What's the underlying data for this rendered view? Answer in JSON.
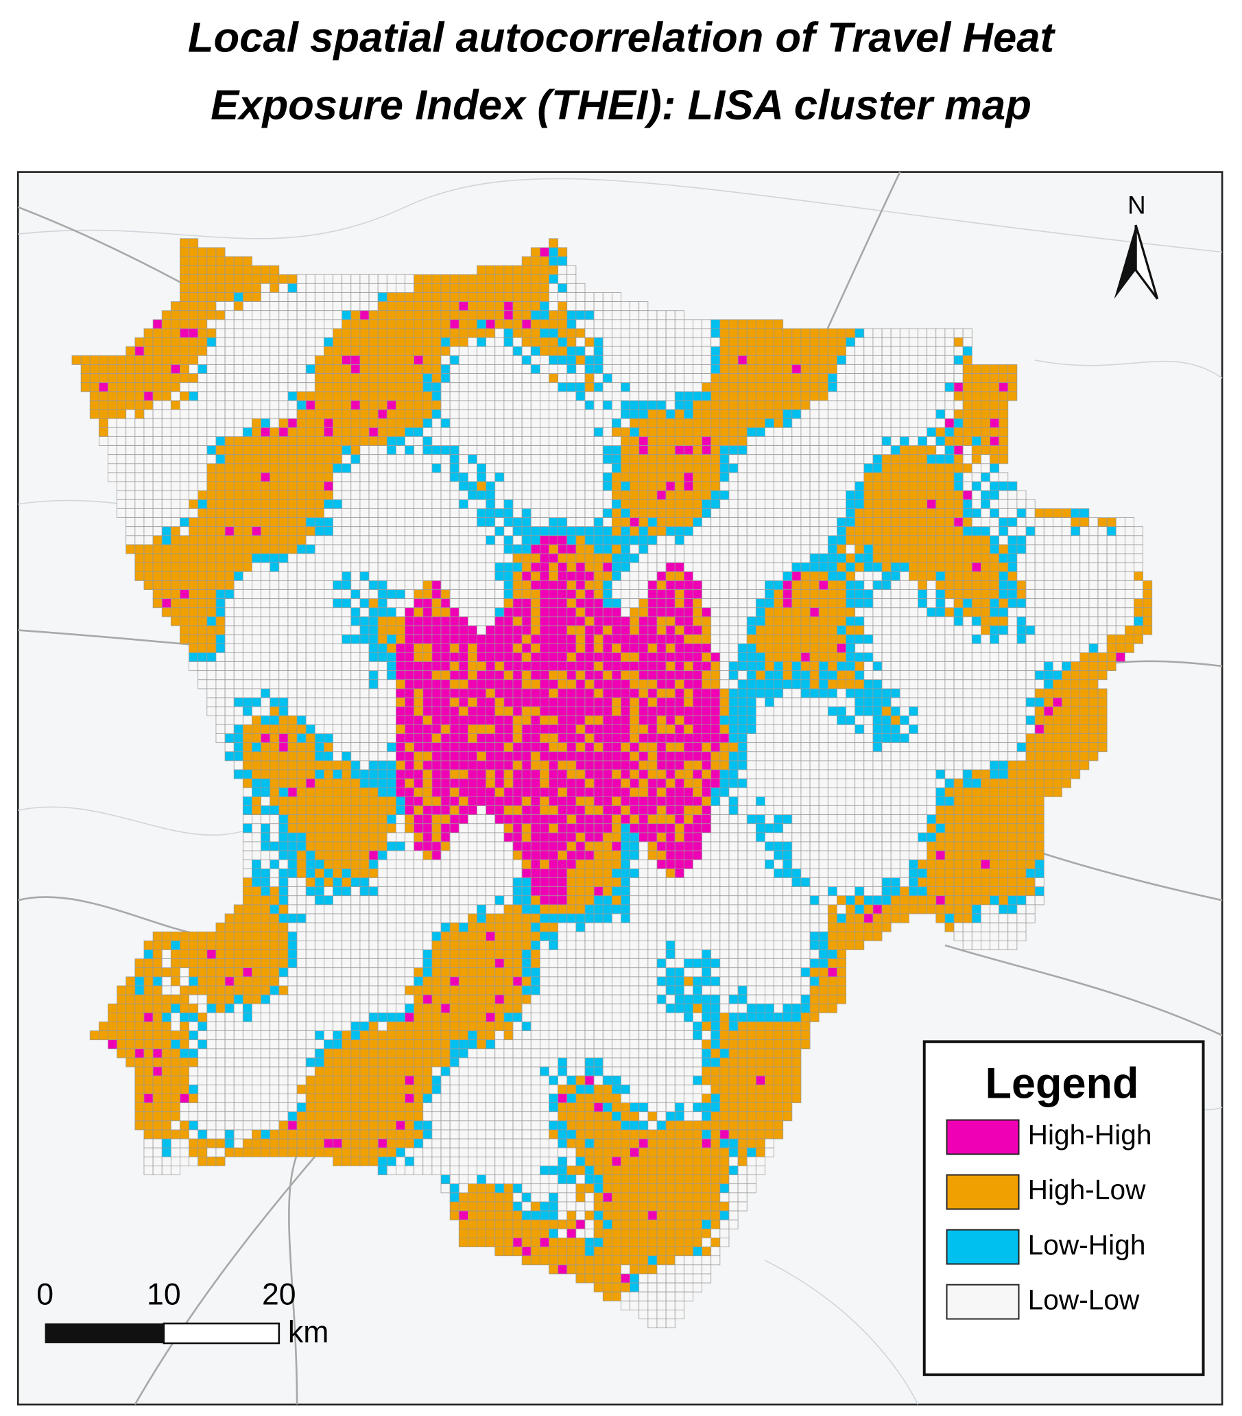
{
  "title_lines": [
    "Local spatial autocorrelation of Travel Heat",
    "Exposure Index (THEI): LISA cluster map"
  ],
  "north_label": "N",
  "scale_bar": {
    "labels": [
      0,
      10,
      20
    ],
    "unit": "km"
  },
  "legend": {
    "title": "Legend",
    "items": [
      {
        "label": "High-High",
        "color": "#f000b4"
      },
      {
        "label": "High-Low",
        "color": "#f0a000"
      },
      {
        "label": "Low-High",
        "color": "#00c0f0"
      },
      {
        "label": "Low-Low",
        "color": "#f7f7f7"
      }
    ]
  }
}
